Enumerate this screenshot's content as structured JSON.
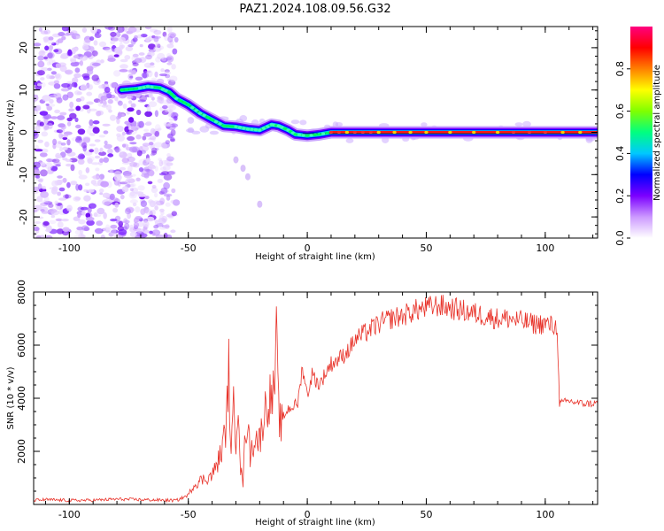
{
  "title": "PAZ1.2024.108.09.56.G32",
  "chart_data": [
    {
      "type": "heatmap",
      "xlabel": "Height of straight line (km)",
      "ylabel": "Frequency (Hz)",
      "xlim": [
        -115,
        122
      ],
      "ylim": [
        -25,
        25
      ],
      "xticks": [
        -100,
        -50,
        0,
        50,
        100
      ],
      "yticks": [
        -20,
        -10,
        0,
        10,
        20
      ],
      "colorbar": {
        "label": "Normalized spectral amplitude",
        "range": [
          0,
          1
        ],
        "ticks": [
          0.0,
          0.2,
          0.4,
          0.6,
          0.8
        ],
        "colormap": [
          "#ffffff",
          "#cc99ff",
          "#7b00ff",
          "#0000ff",
          "#00c8ff",
          "#00ff80",
          "#80ff00",
          "#ffff00",
          "#ff8000",
          "#ff0000",
          "#ff0080"
        ]
      },
      "noise_region": {
        "x": [
          -115,
          -55
        ],
        "y": [
          -25,
          25
        ]
      },
      "ridge": {
        "x": [
          -78,
          -72,
          -67,
          -62,
          -58,
          -55,
          -50,
          -45,
          -40,
          -35,
          -30,
          -25,
          -20,
          -15,
          -12,
          -8,
          -5,
          0,
          5,
          10,
          20,
          30,
          50,
          80,
          100,
          122
        ],
        "y": [
          10,
          10.3,
          10.8,
          10.5,
          9.5,
          8,
          6.5,
          4.5,
          3,
          1.5,
          1.3,
          0.8,
          0.5,
          1.8,
          1.5,
          0.5,
          -0.5,
          -0.8,
          -0.5,
          0,
          0,
          0,
          0,
          0,
          0,
          0
        ],
        "amplitude": [
          0.55,
          0.6,
          0.6,
          0.55,
          0.5,
          0.45,
          0.45,
          0.45,
          0.45,
          0.45,
          0.45,
          0.45,
          0.45,
          0.5,
          0.5,
          0.5,
          0.5,
          0.5,
          0.7,
          0.85,
          0.9,
          0.95,
          0.95,
          0.95,
          0.95,
          0.95
        ]
      },
      "spur": {
        "x": [
          -30,
          -27,
          -25
        ],
        "y": [
          -6.5,
          -8.5,
          -10.5
        ]
      },
      "spur2": {
        "x": [
          -20
        ],
        "y": [
          -17
        ]
      }
    },
    {
      "type": "line",
      "xlabel": "Height of straight line (km)",
      "ylabel": "SNR (10 * v/v)",
      "xlim": [
        -115,
        122
      ],
      "ylim": [
        0,
        8000
      ],
      "xticks": [
        -100,
        -50,
        0,
        50,
        100
      ],
      "yticks": [
        2000,
        4000,
        6000,
        8000
      ],
      "series": [
        {
          "color": "#e8332a",
          "x": [
            -115,
            -110,
            -100,
            -90,
            -80,
            -70,
            -60,
            -55,
            -50,
            -48,
            -45,
            -42,
            -40,
            -38,
            -36,
            -34,
            -33,
            -32,
            -31,
            -30,
            -29,
            -28,
            -27,
            -26,
            -25,
            -24,
            -22,
            -20,
            -18,
            -16,
            -14,
            -13,
            -12,
            -11,
            -10,
            -8,
            -6,
            -4,
            -2,
            0,
            2,
            5,
            8,
            10,
            12,
            15,
            18,
            20,
            25,
            30,
            35,
            40,
            45,
            50,
            55,
            60,
            65,
            70,
            75,
            80,
            85,
            90,
            95,
            100,
            104,
            105,
            106,
            110,
            115,
            122
          ],
          "y": [
            150,
            180,
            150,
            160,
            200,
            180,
            160,
            150,
            350,
            700,
            900,
            1000,
            1100,
            1500,
            2000,
            3000,
            5100,
            1800,
            3600,
            2500,
            4300,
            1300,
            800,
            2800,
            3200,
            1800,
            2600,
            2400,
            3500,
            4000,
            4100,
            6100,
            3500,
            2900,
            3300,
            3600,
            3700,
            3800,
            5200,
            4100,
            4900,
            4500,
            5000,
            5300,
            5400,
            5600,
            5900,
            6200,
            6500,
            6800,
            7000,
            7100,
            7300,
            7400,
            7500,
            7400,
            7300,
            7200,
            7100,
            7000,
            7000,
            6900,
            6800,
            6800,
            6700,
            6600,
            3800,
            3900,
            3800,
            3800
          ]
        }
      ]
    }
  ]
}
